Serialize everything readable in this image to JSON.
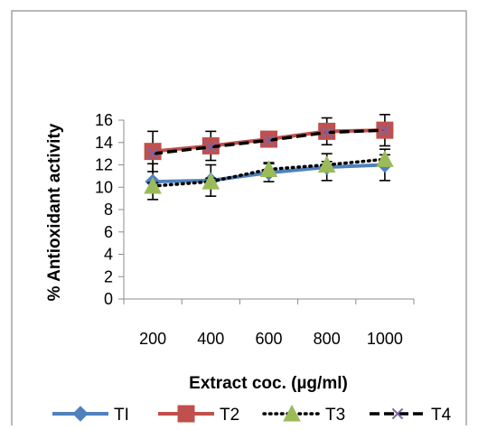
{
  "chart_data": {
    "type": "line",
    "xlabel": "Extract coc. (µg/ml)",
    "ylabel": "% Antioxidant activity",
    "categories": [
      "200",
      "400",
      "600",
      "800",
      "1000"
    ],
    "ylim": [
      0,
      16
    ],
    "yticks": [
      "0",
      "2",
      "4",
      "6",
      "8",
      "10",
      "12",
      "14",
      "16"
    ],
    "grid": false,
    "legend_position": "bottom",
    "series": [
      {
        "name": "TI",
        "values": [
          10.5,
          10.6,
          11.3,
          11.8,
          12.0
        ],
        "error": [
          1.6,
          1.4,
          0.8,
          1.2,
          1.4
        ],
        "color": "#4F81BD",
        "marker": "diamond",
        "dash": "solid"
      },
      {
        "name": "T2",
        "values": [
          13.2,
          13.7,
          14.3,
          15.0,
          15.1
        ],
        "error": [
          1.8,
          1.3,
          0.5,
          1.2,
          1.4
        ],
        "color": "#C0504D",
        "marker": "square",
        "dash": "solid"
      },
      {
        "name": "T3",
        "values": [
          10.1,
          10.5,
          11.6,
          12.0,
          12.5
        ],
        "error": [
          0.3,
          0.3,
          0.6,
          0.3,
          0.4
        ],
        "color": "#000000",
        "marker": "triangle",
        "markerColor": "#9BBB59",
        "dash": "dotted"
      },
      {
        "name": "T4",
        "values": [
          13.0,
          13.6,
          14.2,
          14.9,
          15.1
        ],
        "error": [
          0,
          0,
          0,
          0,
          0
        ],
        "color": "#000000",
        "marker": "x",
        "markerColor": "#8064A2",
        "dash": "dashed"
      }
    ]
  }
}
